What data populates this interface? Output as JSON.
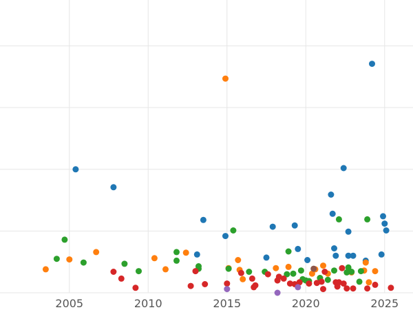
{
  "chart_data": {
    "type": "scatter",
    "title": "",
    "xlabel": "",
    "ylabel": "",
    "xlim": [
      2000.6,
      2026.8
    ],
    "ylim": [
      0,
      510
    ],
    "x_ticks": [
      2005,
      2010,
      2015,
      2020,
      2025
    ],
    "x_tick_labels": [
      "2005",
      "2010",
      "2015",
      "2020",
      "2025"
    ],
    "y_grid": [
      0,
      100,
      200,
      300,
      400,
      500
    ],
    "grid": true,
    "legend": "none",
    "series": [
      {
        "color": "#1f77b4",
        "points": [
          [
            2005.4,
            200
          ],
          [
            2007.8,
            171
          ],
          [
            2013.5,
            118
          ],
          [
            2014.9,
            92
          ],
          [
            2017.5,
            57
          ],
          [
            2017.9,
            107
          ],
          [
            2019.3,
            109
          ],
          [
            2019.5,
            71
          ],
          [
            2020.1,
            53
          ],
          [
            2021.6,
            159
          ],
          [
            2021.7,
            128
          ],
          [
            2021.8,
            72
          ],
          [
            2021.9,
            60
          ],
          [
            2022.4,
            202
          ],
          [
            2022.7,
            99
          ],
          [
            2022.7,
            60
          ],
          [
            2023.0,
            60
          ],
          [
            2023.8,
            52
          ],
          [
            2024.2,
            371
          ],
          [
            2024.9,
            124
          ],
          [
            2025.0,
            112
          ],
          [
            2025.1,
            101
          ],
          [
            2024.8,
            62
          ],
          [
            2013.1,
            62
          ]
        ]
      },
      {
        "color": "#ff7f0e",
        "points": [
          [
            2003.5,
            38
          ],
          [
            2005.0,
            54
          ],
          [
            2006.7,
            66
          ],
          [
            2010.4,
            56
          ],
          [
            2011.1,
            38
          ],
          [
            2012.4,
            65
          ],
          [
            2014.9,
            347
          ],
          [
            2015.1,
            40
          ],
          [
            2015.7,
            53
          ],
          [
            2015.8,
            37
          ],
          [
            2016.0,
            22
          ],
          [
            2018.1,
            40
          ],
          [
            2018.9,
            42
          ],
          [
            2020.4,
            31
          ],
          [
            2020.9,
            24
          ],
          [
            2021.1,
            44
          ],
          [
            2021.4,
            31
          ],
          [
            2022.9,
            33
          ],
          [
            2023.7,
            36
          ],
          [
            2023.8,
            49
          ],
          [
            2024.0,
            17
          ],
          [
            2024.4,
            35
          ],
          [
            2020.6,
            38
          ]
        ]
      },
      {
        "color": "#2ca02c",
        "points": [
          [
            2004.2,
            55
          ],
          [
            2004.7,
            86
          ],
          [
            2005.9,
            49
          ],
          [
            2008.5,
            47
          ],
          [
            2009.4,
            35
          ],
          [
            2011.8,
            66
          ],
          [
            2011.8,
            52
          ],
          [
            2013.2,
            43
          ],
          [
            2013.2,
            39
          ],
          [
            2015.1,
            39
          ],
          [
            2015.4,
            101
          ],
          [
            2016.4,
            34
          ],
          [
            2017.4,
            34
          ],
          [
            2018.8,
            30
          ],
          [
            2018.9,
            67
          ],
          [
            2019.2,
            31
          ],
          [
            2019.7,
            36
          ],
          [
            2020.0,
            20
          ],
          [
            2020.2,
            19
          ],
          [
            2020.9,
            24
          ],
          [
            2021.4,
            21
          ],
          [
            2021.8,
            36
          ],
          [
            2022.1,
            119
          ],
          [
            2022.6,
            33
          ],
          [
            2022.7,
            41
          ],
          [
            2022.9,
            34
          ],
          [
            2023.4,
            18
          ],
          [
            2023.5,
            35
          ],
          [
            2023.9,
            119
          ],
          [
            2019.8,
            22
          ]
        ]
      },
      {
        "color": "#d62728",
        "points": [
          [
            2007.8,
            34
          ],
          [
            2008.3,
            23
          ],
          [
            2009.2,
            8
          ],
          [
            2012.7,
            11
          ],
          [
            2013.0,
            35
          ],
          [
            2013.6,
            14
          ],
          [
            2015.0,
            15
          ],
          [
            2015.9,
            32
          ],
          [
            2016.6,
            23
          ],
          [
            2016.7,
            9
          ],
          [
            2016.8,
            12
          ],
          [
            2017.6,
            30
          ],
          [
            2018.2,
            20
          ],
          [
            2018.3,
            26
          ],
          [
            2018.6,
            23
          ],
          [
            2019.0,
            15
          ],
          [
            2019.6,
            17
          ],
          [
            2020.2,
            15
          ],
          [
            2021.0,
            18
          ],
          [
            2021.1,
            6
          ],
          [
            2021.2,
            34
          ],
          [
            2021.9,
            17
          ],
          [
            2022.0,
            10
          ],
          [
            2022.1,
            17
          ],
          [
            2022.3,
            40
          ],
          [
            2022.4,
            15
          ],
          [
            2022.6,
            7
          ],
          [
            2023.0,
            7
          ],
          [
            2023.9,
            7
          ],
          [
            2024.4,
            13
          ],
          [
            2025.4,
            8
          ],
          [
            2019.3,
            14
          ],
          [
            2020.7,
            16
          ]
        ]
      },
      {
        "color": "#9467bd",
        "points": [
          [
            2015.0,
            6
          ],
          [
            2018.2,
            0
          ],
          [
            2019.5,
            9
          ]
        ]
      },
      {
        "color": "#8c564b",
        "points": [
          [
            2020.5,
            39
          ]
        ]
      }
    ]
  }
}
